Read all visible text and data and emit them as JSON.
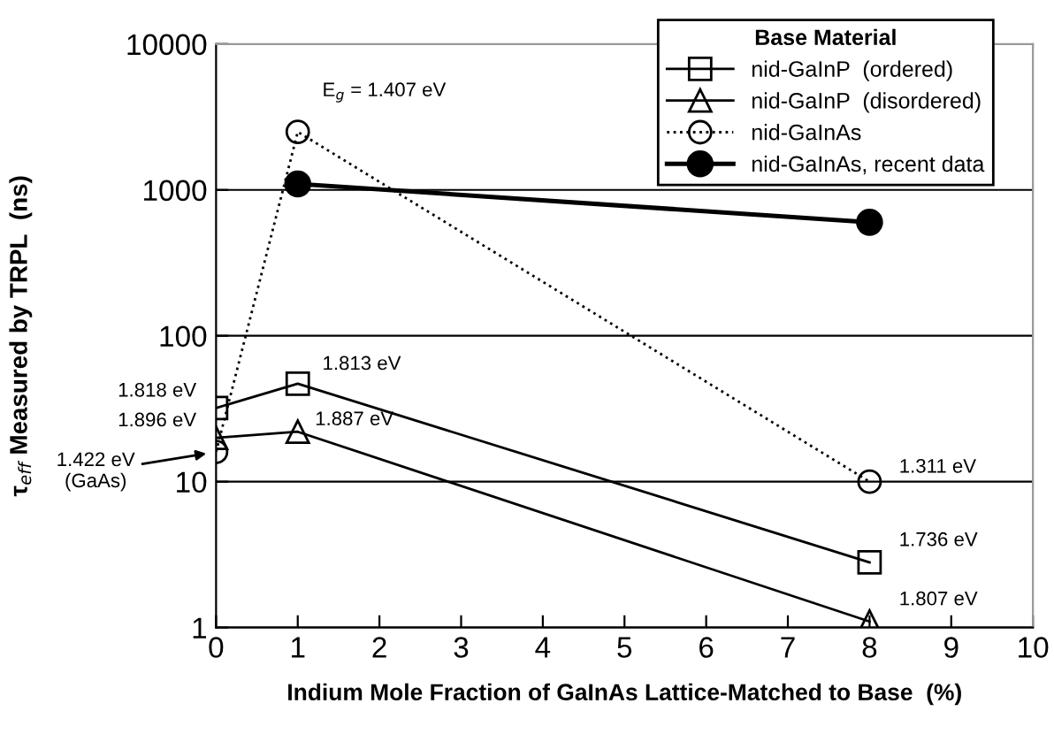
{
  "chart_data": {
    "type": "line",
    "xlabel": "Indium Mole Fraction of GaInAs Lattice-Matched to Base  (%)",
    "ylabel": "τ$_{eff}$ Measured by TRPL  (ns)",
    "legend_title": "Base Material",
    "log": "y",
    "xlim": [
      0,
      10
    ],
    "xticks": [
      0,
      1,
      2,
      3,
      4,
      5,
      6,
      7,
      8,
      9,
      10
    ],
    "ylim": [
      1,
      10000
    ],
    "yticks": [
      1,
      10,
      100,
      1000,
      10000
    ],
    "grid": "y",
    "legend": "top right",
    "series": [
      {
        "name": "nid-GaInP  (ordered)",
        "color": "#000000",
        "x": [
          0,
          1,
          8
        ],
        "values": [
          32,
          47,
          2.8
        ],
        "marker": "square",
        "line_style": "solid"
      },
      {
        "name": "nid-GaInP  (disordered)",
        "color": "#000000",
        "x": [
          0,
          1,
          8
        ],
        "values": [
          20,
          22,
          1.1
        ],
        "marker": "triangle",
        "line_style": "solid"
      },
      {
        "name": "nid-GaInAs",
        "color": "#000000",
        "x": [
          0,
          1,
          8
        ],
        "values": [
          16,
          2500,
          10
        ],
        "marker": "circle",
        "line_style": "dotted"
      },
      {
        "name": "nid-GaInAs, recent data",
        "color": "#000000",
        "x": [
          1,
          8
        ],
        "values": [
          1100,
          600
        ],
        "marker": "circle",
        "line_style": "solid"
      }
    ],
    "annotations": [
      {
        "text": "1.818 eV",
        "x": 0,
        "y": 32
      },
      {
        "text": "1.896 eV",
        "x": 0,
        "y": 20
      },
      {
        "text": "1.422 eV\n(GaAs)",
        "x": 0,
        "y": 16
      },
      {
        "text": "1.813 eV",
        "x": 1,
        "y": 47
      },
      {
        "text": "1.887 eV",
        "x": 1,
        "y": 22
      },
      {
        "text": "E$_{g}$ = 1.407 eV",
        "x": 1,
        "y": 2500
      },
      {
        "text": "1.311 eV",
        "x": 8,
        "y": 10
      },
      {
        "text": "1.736 eV",
        "x": 8,
        "y": 2.8
      },
      {
        "text": "1.807 eV",
        "x": 8,
        "y": 1.1
      }
    ]
  }
}
